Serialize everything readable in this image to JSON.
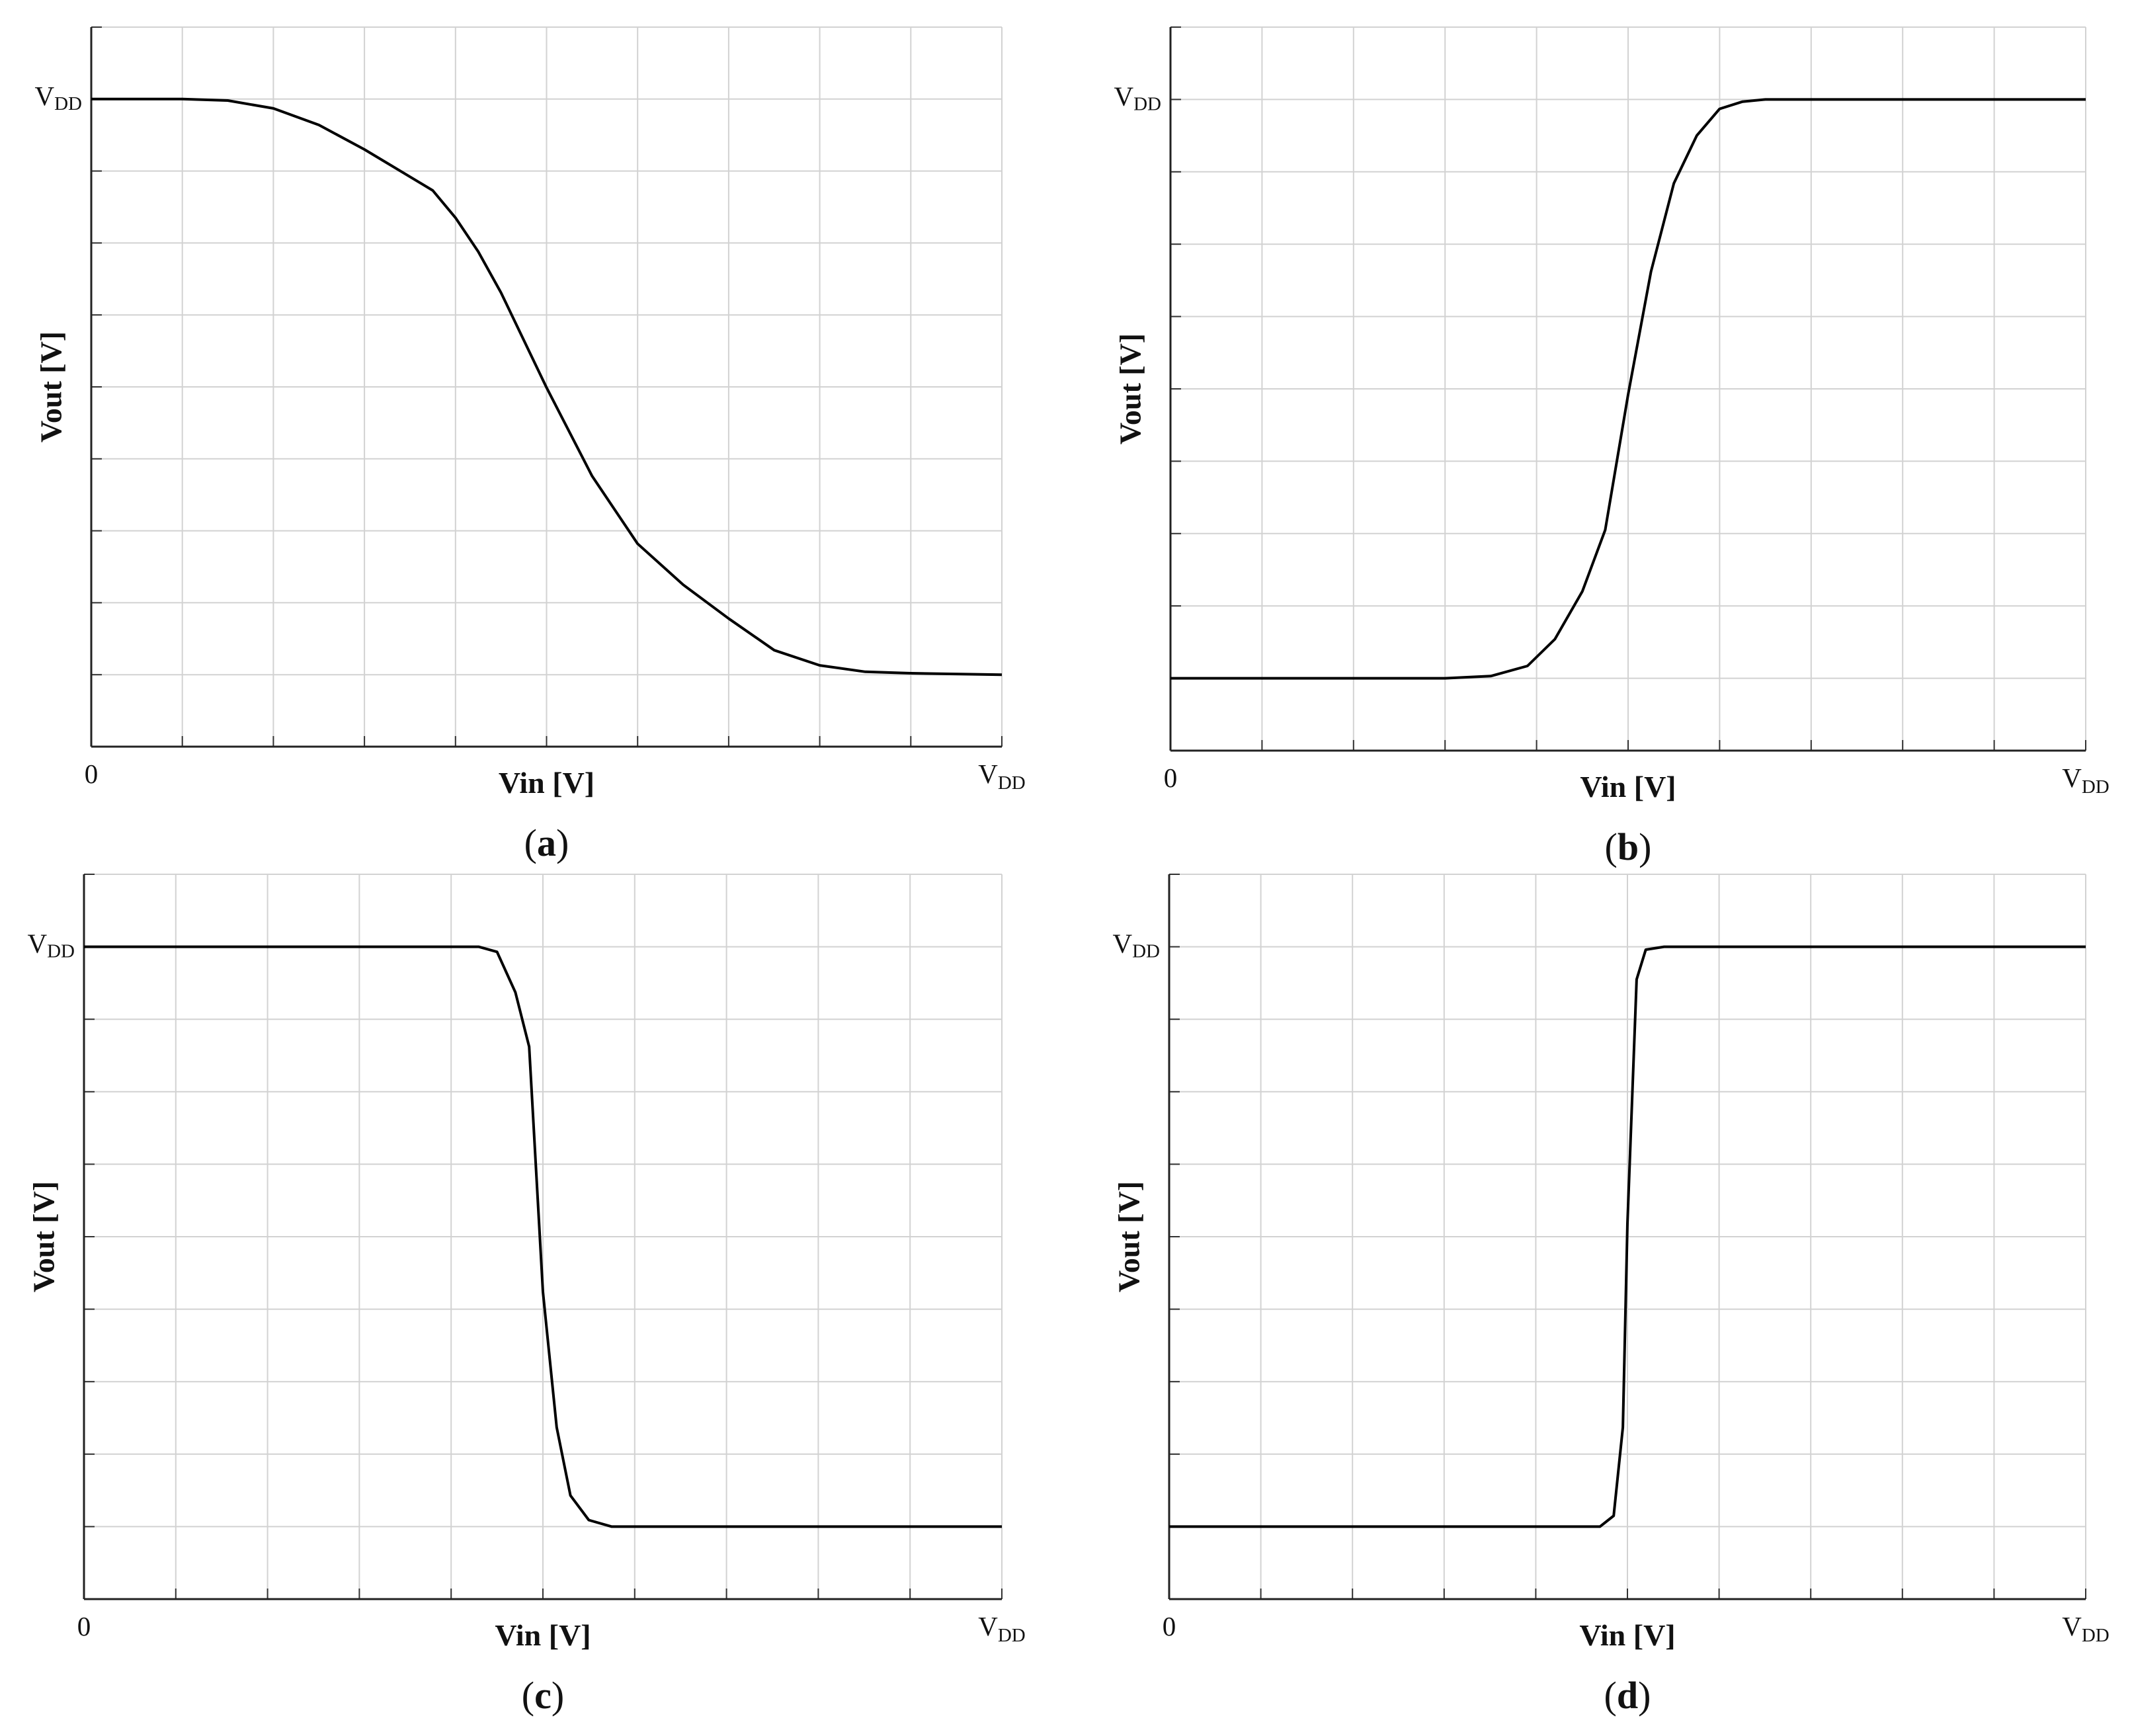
{
  "chart_data": [
    {
      "type": "line",
      "caption": "(a)",
      "x_label": "Vin [V]",
      "y_label": "Vout [V]",
      "color": "#000000",
      "grid": true,
      "xlim": [
        0,
        10
      ],
      "ylim": [
        0,
        10
      ],
      "xticks": [
        0,
        {
          "value": 10,
          "label": "VDD"
        }
      ],
      "yticks": [
        {
          "value": 9,
          "label": "VDD"
        }
      ],
      "xgrid": [
        0,
        1,
        2,
        3,
        4,
        5,
        6,
        7,
        8,
        9,
        10
      ],
      "ygrid": [
        0,
        1,
        2,
        3,
        4,
        5,
        6,
        7,
        8,
        9,
        10
      ],
      "x": [
        0,
        0.5,
        1,
        1.5,
        2,
        2.5,
        3,
        3.25,
        3.75,
        4,
        4.25,
        4.5,
        5,
        5.5,
        6,
        6.5,
        7,
        7.5,
        8,
        8.5,
        9,
        10
      ],
      "values": [
        9,
        9,
        9,
        8.98,
        8.87,
        8.64,
        8.3,
        8.11,
        7.73,
        7.35,
        6.88,
        6.31,
        4.99,
        3.76,
        2.82,
        2.25,
        1.78,
        1.34,
        1.13,
        1.04,
        1.02,
        1
      ]
    },
    {
      "type": "line",
      "caption": "(b)",
      "x_label": "Vin [V]",
      "y_label": "Vout [V]",
      "color": "#000000",
      "grid": true,
      "xlim": [
        0,
        10
      ],
      "ylim": [
        0,
        10
      ],
      "xticks": [
        0,
        {
          "value": 10,
          "label": "VDD"
        }
      ],
      "yticks": [
        {
          "value": 9,
          "label": "VDD"
        }
      ],
      "xgrid": [
        0,
        1,
        2,
        3,
        4,
        5,
        6,
        7,
        8,
        9,
        10
      ],
      "ygrid": [
        0,
        1,
        2,
        3,
        4,
        5,
        6,
        7,
        8,
        9,
        10
      ],
      "x": [
        0,
        1,
        2,
        3,
        3.5,
        3.9,
        4.2,
        4.5,
        4.75,
        5,
        5.25,
        5.5,
        5.75,
        6,
        6.25,
        6.5,
        8,
        10
      ],
      "values": [
        1,
        1,
        1,
        1,
        1.03,
        1.17,
        1.54,
        2.2,
        3.05,
        4.92,
        6.62,
        7.84,
        8.5,
        8.87,
        8.97,
        9,
        9,
        9
      ]
    },
    {
      "type": "line",
      "caption": "(c)",
      "x_label": "Vin [V]",
      "y_label": "Vout [V]",
      "color": "#000000",
      "grid": true,
      "xlim": [
        0,
        10
      ],
      "ylim": [
        0,
        10
      ],
      "xticks": [
        0,
        {
          "value": 10,
          "label": "VDD"
        }
      ],
      "yticks": [
        {
          "value": 9,
          "label": "VDD"
        }
      ],
      "xgrid": [
        0,
        1,
        2,
        3,
        4,
        5,
        6,
        7,
        8,
        9,
        10
      ],
      "ygrid": [
        0,
        1,
        2,
        3,
        4,
        5,
        6,
        7,
        8,
        9,
        10
      ],
      "x": [
        0,
        2,
        4,
        4.3,
        4.5,
        4.7,
        4.85,
        5,
        5.15,
        5.3,
        5.5,
        5.75,
        8,
        10
      ],
      "values": [
        9,
        9,
        9,
        9,
        8.93,
        8.37,
        7.62,
        4.24,
        2.37,
        1.43,
        1.09,
        1,
        1,
        1
      ]
    },
    {
      "type": "line",
      "caption": "(d)",
      "x_label": "Vin [V]",
      "y_label": "Vout [V]",
      "color": "#000000",
      "grid": true,
      "xlim": [
        0,
        10
      ],
      "ylim": [
        0,
        10
      ],
      "xticks": [
        0,
        {
          "value": 10,
          "label": "VDD"
        }
      ],
      "yticks": [
        {
          "value": 9,
          "label": "VDD"
        }
      ],
      "xgrid": [
        0,
        1,
        2,
        3,
        4,
        5,
        6,
        7,
        8,
        9,
        10
      ],
      "ygrid": [
        0,
        1,
        2,
        3,
        4,
        5,
        6,
        7,
        8,
        9,
        10
      ],
      "x": [
        0,
        2,
        4,
        4.7,
        4.85,
        4.95,
        5,
        5.1,
        5.2,
        5.4,
        8,
        10
      ],
      "values": [
        1,
        1,
        1,
        1,
        1.15,
        2.37,
        5.18,
        8.55,
        8.96,
        9,
        9,
        9
      ]
    }
  ]
}
